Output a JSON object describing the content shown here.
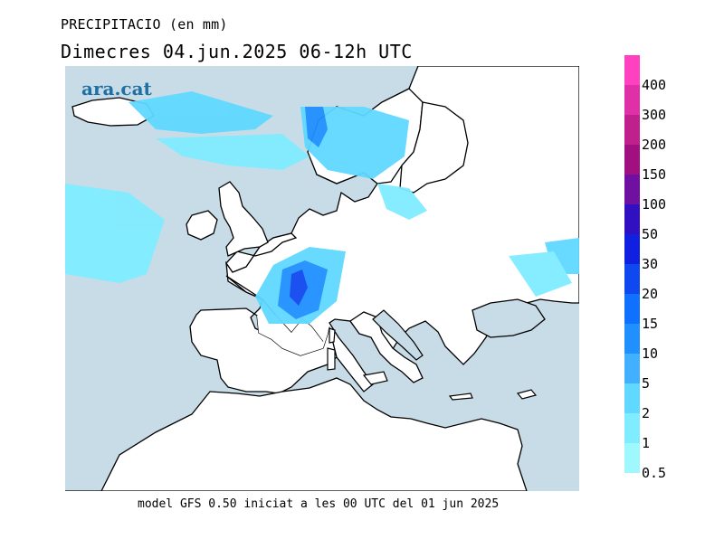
{
  "header": {
    "title": "PRECIPITACIO (en mm)",
    "subtitle": "Dimecres  04.jun.2025 06-12h UTC"
  },
  "logo": {
    "text": "ara.cat"
  },
  "footer": {
    "text": "model GFS 0.50 iniciat a les 00 UTC del 01 jun 2025"
  },
  "legend": {
    "labels": [
      "400",
      "300",
      "200",
      "150",
      "100",
      "50",
      "30",
      "20",
      "15",
      "10",
      "5",
      "2",
      "1",
      "0.5"
    ],
    "colors": [
      "#ff40c0",
      "#e030a8",
      "#c0208c",
      "#a01080",
      "#7010a0",
      "#3010c0",
      "#1020e0",
      "#1048f0",
      "#1070ff",
      "#2090ff",
      "#40b0ff",
      "#60d8ff",
      "#80ecff",
      "#a0f8ff",
      "#ffffff"
    ]
  },
  "map": {
    "sea_color": "#c8dce8",
    "land_color": "#ffffff",
    "coast_color": "#000000"
  }
}
